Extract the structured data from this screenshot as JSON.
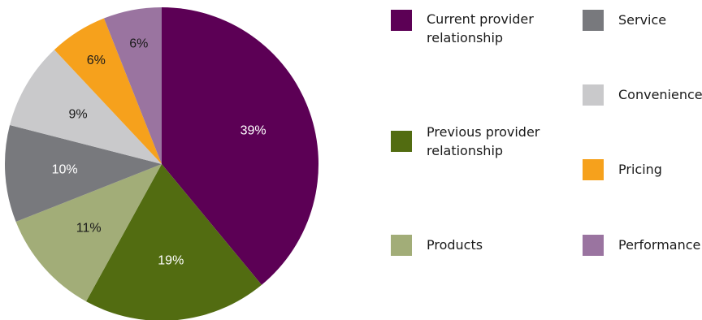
{
  "chart_data": {
    "type": "pie",
    "title": "",
    "slices": [
      {
        "label": "Current provider relationship",
        "value": 39,
        "display": "39%",
        "color": "#5c0055",
        "label_color": "#ffffff"
      },
      {
        "label": "Previous provider relationship",
        "value": 19,
        "display": "19%",
        "color": "#526c11",
        "label_color": "#ffffff"
      },
      {
        "label": "Products",
        "value": 11,
        "display": "11%",
        "color": "#a2ad78",
        "label_color": "#1a1a1a"
      },
      {
        "label": "Service",
        "value": 10,
        "display": "10%",
        "color": "#78797d",
        "label_color": "#ffffff"
      },
      {
        "label": "Convenience",
        "value": 9,
        "display": "9%",
        "color": "#c9c9cb",
        "label_color": "#1a1a1a"
      },
      {
        "label": "Pricing",
        "value": 6,
        "display": "6%",
        "color": "#f6a11c",
        "label_color": "#1a1a1a"
      },
      {
        "label": "Performance",
        "value": 6,
        "display": "6%",
        "color": "#9a74a0",
        "label_color": "#1a1a1a"
      }
    ],
    "start_angle": "12 o'clock",
    "direction": "clockwise",
    "legend_position": "right"
  },
  "legend": {
    "current": {
      "line1": "Current provider",
      "line2": "relationship",
      "color": "#5c0055"
    },
    "previous": {
      "line1": "Previous provider",
      "line2": "relationship",
      "color": "#526c11"
    },
    "products": {
      "line1": "Products",
      "color": "#a2ad78"
    },
    "service": {
      "line1": "Service",
      "color": "#78797d"
    },
    "convenience": {
      "line1": "Convenience",
      "color": "#c9c9cb"
    },
    "pricing": {
      "line1": "Pricing",
      "color": "#f6a11c"
    },
    "performance": {
      "line1": "Performance",
      "color": "#9a74a0"
    }
  }
}
